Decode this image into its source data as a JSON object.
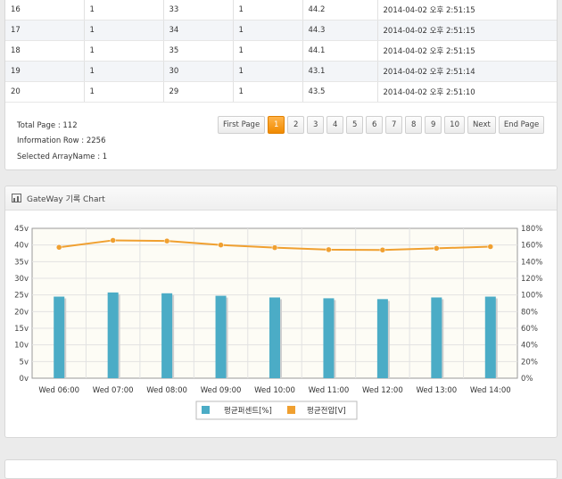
{
  "table": {
    "rows": [
      [
        "16",
        "1",
        "33",
        "1",
        "44.2",
        "2014-04-02 오후 2:51:15"
      ],
      [
        "17",
        "1",
        "34",
        "1",
        "44.3",
        "2014-04-02 오후 2:51:15"
      ],
      [
        "18",
        "1",
        "35",
        "1",
        "44.1",
        "2014-04-02 오후 2:51:15"
      ],
      [
        "19",
        "1",
        "30",
        "1",
        "43.1",
        "2014-04-02 오후 2:51:14"
      ],
      [
        "20",
        "1",
        "29",
        "1",
        "43.5",
        "2014-04-02 오후 2:51:10"
      ]
    ]
  },
  "info": {
    "total_page": "Total Page : 112",
    "information_row": "Information Row : 2256",
    "selected_array": "Selected ArrayName : 1"
  },
  "pagination": {
    "first": "First Page",
    "pages": [
      "1",
      "2",
      "3",
      "4",
      "5",
      "6",
      "7",
      "8",
      "9",
      "10"
    ],
    "current": "1",
    "next": "Next",
    "end": "End Page"
  },
  "chart_panel": {
    "title": "GateWay 기록 Chart"
  },
  "chart_data": {
    "type": "bar",
    "categories": [
      "Wed 06:00",
      "Wed 07:00",
      "Wed 08:00",
      "Wed 09:00",
      "Wed 10:00",
      "Wed 11:00",
      "Wed 12:00",
      "Wed 13:00",
      "Wed 14:00"
    ],
    "left_ticks": [
      "0v",
      "5v",
      "10v",
      "15v",
      "20v",
      "25v",
      "30v",
      "35v",
      "40v",
      "45v"
    ],
    "right_ticks": [
      "0%",
      "20%",
      "40%",
      "60%",
      "80%",
      "100%",
      "120%",
      "140%",
      "160%",
      "180%"
    ],
    "ylim_left": [
      0,
      45
    ],
    "ylim_right": [
      0,
      180
    ],
    "series": [
      {
        "name": "평균퍼센트[%]",
        "type": "bar",
        "axis": "right",
        "color": "#4bacc6",
        "values": [
          98,
          103,
          102,
          99,
          97,
          96,
          95,
          97,
          98
        ]
      },
      {
        "name": "평균전압[V]",
        "type": "line",
        "axis": "left",
        "color": "#f0a030",
        "values": [
          39.3,
          41.4,
          41.2,
          40.0,
          39.2,
          38.6,
          38.5,
          39.0,
          39.5
        ]
      }
    ],
    "grid": true,
    "legend": "bottom"
  }
}
